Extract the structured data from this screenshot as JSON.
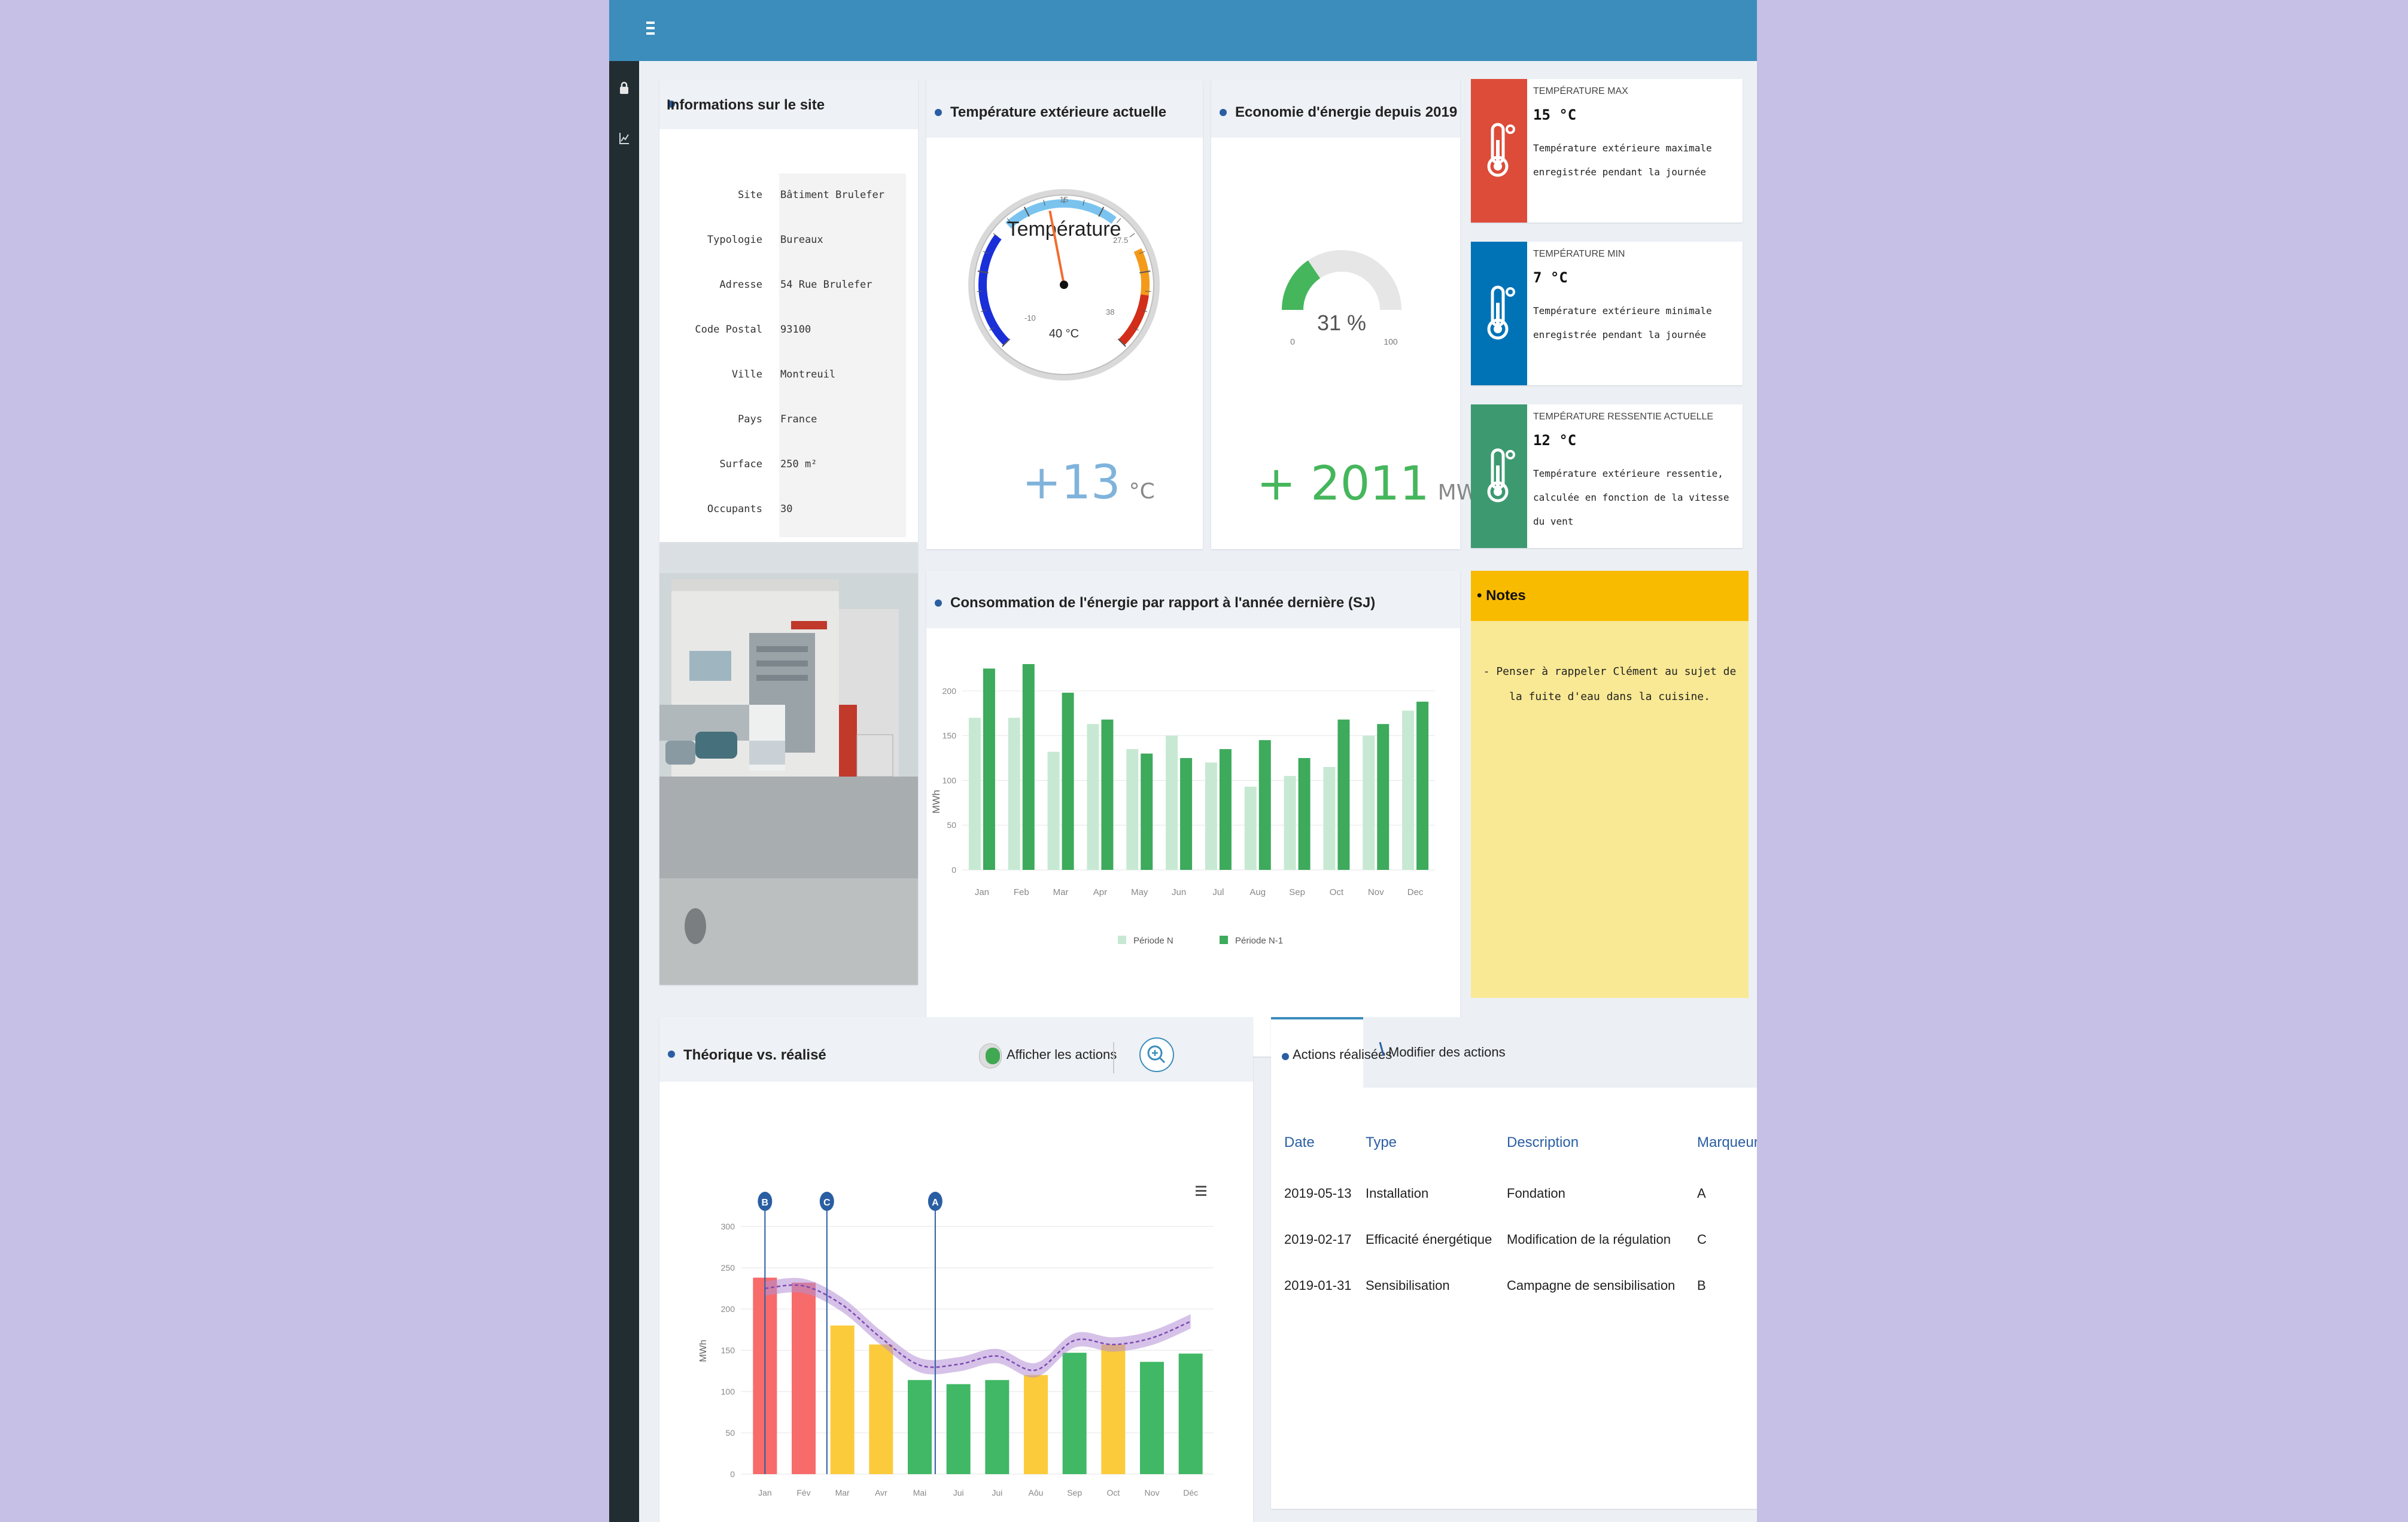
{
  "site_info": {
    "title": "Informations sur le site",
    "rows": [
      {
        "label": "Site",
        "value": "Bâtiment Brulefer"
      },
      {
        "label": "Typologie",
        "value": "Bureaux"
      },
      {
        "label": "Adresse",
        "value": "54 Rue Brulefer"
      },
      {
        "label": "Code Postal",
        "value": "93100"
      },
      {
        "label": "Ville",
        "value": "Montreuil"
      },
      {
        "label": "Pays",
        "value": "France"
      },
      {
        "label": "Surface",
        "value": "250 m²"
      },
      {
        "label": "Occupants",
        "value": "30"
      }
    ]
  },
  "temperature": {
    "title": "Température extérieure actuelle",
    "gauge_label": "Température",
    "gauge_max_label": "40 °C",
    "ticks": [
      "-10",
      "15",
      "27.5",
      "38"
    ],
    "value": "+13",
    "unit": "°C",
    "needle_value": 13
  },
  "economy": {
    "title": "Economie d'énergie depuis 2019",
    "percent_label": "31 %",
    "percent": 31,
    "min_label": "0",
    "max_label": "100",
    "value": "+ 2011",
    "unit": "MWh"
  },
  "stats": [
    {
      "caption": "TEMPÉRATURE MAX",
      "value": "15 °C",
      "description": "Température extérieure maximale enregistrée pendant la journée",
      "color": "#dd4b39"
    },
    {
      "caption": "TEMPÉRATURE MIN",
      "value": "7 °C",
      "description": "Température extérieure minimale enregistrée pendant la journée",
      "color": "#0073b7"
    },
    {
      "caption": "TEMPÉRATURE RESSENTIE ACTUELLE",
      "value": "12 °C",
      "description": "Température extérieure ressentie, calculée en fonction de la vitesse du vent",
      "color": "#3d9970"
    }
  ],
  "notes": {
    "title": "Notes",
    "text": "- Penser à rappeler Clément au sujet de la fuite d'eau dans la cuisine."
  },
  "consumption": {
    "title": "Consommation de l'énergie par rapport à l'année dernière (SJ)",
    "chart_data": {
      "type": "bar",
      "categories": [
        "Jan",
        "Feb",
        "Mar",
        "Apr",
        "May",
        "Jun",
        "Jul",
        "Aug",
        "Sep",
        "Oct",
        "Nov",
        "Dec"
      ],
      "series": [
        {
          "name": "Période N",
          "color": "#c7e9d3",
          "values": [
            170,
            170,
            132,
            163,
            135,
            150,
            120,
            93,
            105,
            115,
            150,
            178
          ]
        },
        {
          "name": "Période N-1",
          "color": "#3daa5c",
          "values": [
            225,
            230,
            198,
            168,
            130,
            125,
            135,
            145,
            125,
            168,
            163,
            188
          ]
        }
      ],
      "ylabel": "MWh",
      "ylim": [
        0,
        230
      ],
      "yticks": [
        0,
        50,
        100,
        150,
        200
      ],
      "legend": "bottom"
    }
  },
  "theoretical": {
    "title": "Théorique vs. réalisé",
    "toggle_label": "Afficher les actions",
    "chart_data": {
      "type": "bar",
      "categories": [
        "Jan",
        "Fév",
        "Mar",
        "Avr",
        "Mai",
        "Jui",
        "Jui",
        "Aôu",
        "Sep",
        "Oct",
        "Nov",
        "Déc"
      ],
      "values": [
        238,
        232,
        180,
        157,
        114,
        109,
        114,
        120,
        147,
        157,
        136,
        146
      ],
      "colors": [
        "#f76b6b",
        "#f76b6b",
        "#fbcb3c",
        "#fbcb3c",
        "#40b865",
        "#40b865",
        "#40b865",
        "#fbcb3c",
        "#40b865",
        "#fbcb3c",
        "#40b865",
        "#40b865"
      ],
      "line_values": [
        225,
        228,
        205,
        165,
        132,
        133,
        143,
        126,
        162,
        157,
        165,
        185
      ],
      "ylabel": "MWh",
      "ylim": [
        0,
        300
      ],
      "yticks": [
        0,
        50,
        100,
        150,
        200,
        250,
        300
      ],
      "markers": [
        {
          "label": "B",
          "x_index": 0
        },
        {
          "label": "C",
          "x_index": 1.6
        },
        {
          "label": "A",
          "x_index": 4.4
        }
      ]
    }
  },
  "actions": {
    "tabs": [
      {
        "label": "Actions réalisées",
        "active": true
      },
      {
        "label": "Modifier des actions",
        "active": false
      }
    ],
    "columns": [
      "Date",
      "Type",
      "Description",
      "Marqueur"
    ],
    "rows": [
      [
        "2019-05-13",
        "Installation",
        "Fondation",
        "A"
      ],
      [
        "2019-02-17",
        "Efficacité énergétique",
        "Modification de la régulation",
        "C"
      ],
      [
        "2019-01-31",
        "Sensibilisation",
        "Campagne de sensibilisation",
        "B"
      ]
    ]
  }
}
